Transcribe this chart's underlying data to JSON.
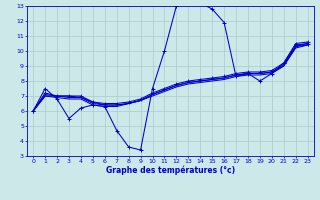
{
  "xlabel": "Graphe des températures (°c)",
  "bg_color": "#cce8e8",
  "grid_color": "#aacccc",
  "line_color": "#0000cc",
  "xlim": [
    -0.5,
    23.5
  ],
  "ylim": [
    3,
    13
  ],
  "xticks": [
    0,
    1,
    2,
    3,
    4,
    5,
    6,
    7,
    8,
    9,
    10,
    11,
    12,
    13,
    14,
    15,
    16,
    17,
    18,
    19,
    20,
    21,
    22,
    23
  ],
  "yticks": [
    3,
    4,
    5,
    6,
    7,
    8,
    9,
    10,
    11,
    12,
    13
  ],
  "line1_x": [
    0,
    1,
    2,
    3,
    4,
    5,
    6,
    7,
    8,
    9,
    10,
    11,
    12,
    13,
    14,
    15,
    16,
    17,
    18,
    19,
    20,
    21,
    22,
    23
  ],
  "line1_y": [
    6.0,
    7.5,
    6.8,
    5.5,
    6.2,
    6.4,
    6.3,
    4.7,
    3.6,
    3.4,
    7.5,
    10.0,
    13.0,
    13.2,
    13.2,
    12.8,
    11.9,
    8.3,
    8.5,
    8.0,
    8.5,
    9.2,
    10.4,
    10.5
  ],
  "line2_x": [
    0,
    1,
    2,
    3,
    4,
    5,
    6,
    7,
    8,
    9,
    10,
    11,
    12,
    13,
    14,
    15,
    16,
    17,
    18,
    19,
    20,
    21,
    22,
    23
  ],
  "line2_y": [
    6.0,
    7.2,
    7.0,
    7.0,
    7.0,
    6.6,
    6.5,
    6.5,
    6.6,
    6.8,
    7.2,
    7.5,
    7.8,
    8.0,
    8.1,
    8.2,
    8.3,
    8.5,
    8.6,
    8.6,
    8.7,
    9.2,
    10.5,
    10.6
  ],
  "line3_x": [
    0,
    1,
    2,
    3,
    4,
    5,
    6,
    7,
    8,
    9,
    10,
    11,
    12,
    13,
    14,
    15,
    16,
    17,
    18,
    19,
    20,
    21,
    22,
    23
  ],
  "line3_y": [
    6.0,
    7.0,
    7.0,
    7.0,
    6.9,
    6.6,
    6.4,
    6.4,
    6.5,
    6.7,
    7.1,
    7.4,
    7.7,
    7.9,
    8.0,
    8.1,
    8.2,
    8.4,
    8.5,
    8.5,
    8.6,
    9.0,
    10.3,
    10.4
  ],
  "line4_x": [
    0,
    1,
    2,
    3,
    4,
    5,
    6,
    7,
    8,
    9,
    10,
    11,
    12,
    13,
    14,
    15,
    16,
    17,
    18,
    19,
    20,
    21,
    22,
    23
  ],
  "line4_y": [
    6.0,
    7.1,
    7.0,
    6.9,
    6.9,
    6.5,
    6.4,
    6.4,
    6.5,
    6.7,
    7.1,
    7.4,
    7.7,
    7.9,
    8.0,
    8.1,
    8.2,
    8.4,
    8.5,
    8.5,
    8.6,
    9.1,
    10.3,
    10.5
  ],
  "line5_x": [
    0,
    1,
    2,
    3,
    4,
    5,
    6,
    7,
    8,
    9,
    10,
    11,
    12,
    13,
    14,
    15,
    16,
    17,
    18,
    19,
    20,
    21,
    22,
    23
  ],
  "line5_y": [
    6.0,
    7.0,
    6.9,
    6.8,
    6.8,
    6.4,
    6.3,
    6.3,
    6.5,
    6.7,
    7.0,
    7.3,
    7.6,
    7.8,
    7.9,
    8.0,
    8.1,
    8.3,
    8.4,
    8.4,
    8.5,
    9.0,
    10.2,
    10.4
  ]
}
